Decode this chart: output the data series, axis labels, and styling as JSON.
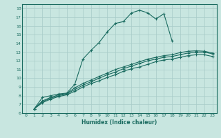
{
  "xlabel": "Humidex (Indice chaleur)",
  "bg_color": "#c8e6e0",
  "line_color": "#1a6b60",
  "grid_color": "#a8ccc8",
  "xlim": [
    -0.5,
    23.5
  ],
  "ylim": [
    6,
    18.5
  ],
  "xticks": [
    0,
    1,
    2,
    3,
    4,
    5,
    6,
    7,
    8,
    9,
    10,
    11,
    12,
    13,
    14,
    15,
    16,
    17,
    18,
    19,
    20,
    21,
    22,
    23
  ],
  "yticks": [
    6,
    7,
    8,
    9,
    10,
    11,
    12,
    13,
    14,
    15,
    16,
    17,
    18
  ],
  "line1_x": [
    1,
    2,
    3,
    4,
    5,
    6,
    7,
    8,
    9,
    10,
    11,
    12,
    13,
    14,
    15,
    16,
    17,
    18
  ],
  "line1_y": [
    6.5,
    7.8,
    8.0,
    8.2,
    8.3,
    9.3,
    12.2,
    13.2,
    14.1,
    15.3,
    16.3,
    16.5,
    17.5,
    17.8,
    17.5,
    16.8,
    17.4,
    14.3
  ],
  "line2_x": [
    1,
    2,
    3,
    4,
    5,
    6,
    7,
    8,
    9,
    10,
    11,
    12,
    13,
    14,
    15,
    16,
    17,
    18,
    19,
    20,
    21,
    22,
    23
  ],
  "line2_y": [
    6.5,
    7.4,
    7.8,
    8.1,
    8.25,
    8.9,
    9.4,
    9.8,
    10.2,
    10.6,
    11.0,
    11.3,
    11.6,
    11.9,
    12.2,
    12.4,
    12.6,
    12.7,
    12.95,
    13.1,
    13.15,
    13.1,
    12.9
  ],
  "line3_x": [
    1,
    2,
    3,
    4,
    5,
    6,
    7,
    8,
    9,
    10,
    11,
    12,
    13,
    14,
    15,
    16,
    17,
    18,
    19,
    20,
    21,
    22,
    23
  ],
  "line3_y": [
    6.5,
    7.3,
    7.7,
    8.0,
    8.2,
    8.7,
    9.2,
    9.6,
    10.0,
    10.4,
    10.7,
    11.1,
    11.4,
    11.7,
    12.0,
    12.2,
    12.4,
    12.5,
    12.7,
    12.9,
    13.0,
    13.0,
    12.8
  ],
  "line4_x": [
    1,
    2,
    3,
    4,
    5,
    6,
    7,
    8,
    9,
    10,
    11,
    12,
    13,
    14,
    15,
    16,
    17,
    18,
    19,
    20,
    21,
    22,
    23
  ],
  "line4_y": [
    6.5,
    7.2,
    7.6,
    7.9,
    8.1,
    8.5,
    9.0,
    9.4,
    9.7,
    10.1,
    10.4,
    10.8,
    11.1,
    11.3,
    11.6,
    11.9,
    12.1,
    12.2,
    12.4,
    12.6,
    12.7,
    12.7,
    12.5
  ]
}
